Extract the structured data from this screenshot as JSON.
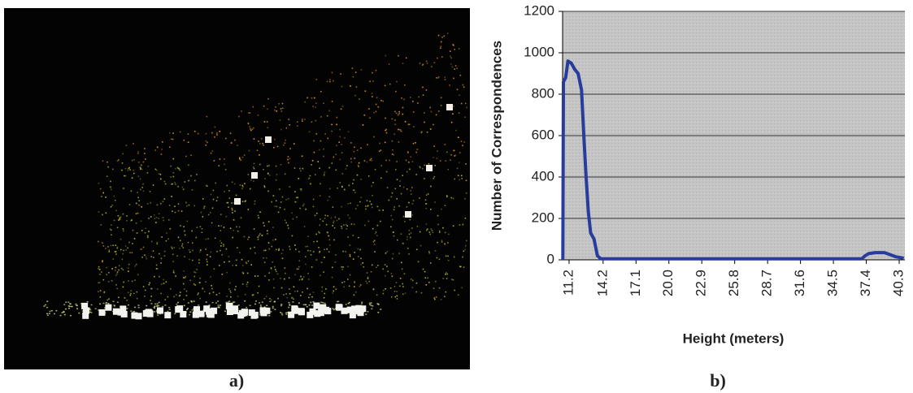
{
  "chart_data": {
    "type": "line",
    "ylabel": "Number of Correspondences",
    "xlabel": "Height (meters)",
    "color": "#283c9c",
    "grid": true,
    "x": [
      10.65,
      10.7,
      10.9,
      11.1,
      11.4,
      11.7,
      12.0,
      12.3,
      12.5,
      12.7,
      12.9,
      13.1,
      13.4,
      13.7,
      14.0,
      14.5,
      20,
      30,
      37.0,
      37.3,
      37.6,
      38.2,
      39.0,
      39.5,
      40.0,
      40.7
    ],
    "values": [
      0,
      860,
      880,
      960,
      950,
      920,
      900,
      820,
      600,
      400,
      230,
      130,
      100,
      20,
      5,
      5,
      5,
      5,
      5,
      20,
      30,
      35,
      35,
      25,
      15,
      8
    ],
    "xlim": [
      10.63,
      40.8
    ],
    "ylim": [
      0,
      1200
    ],
    "xticks": [
      11.2,
      14.2,
      17.1,
      {
        "value": 20,
        "label": "20.0"
      },
      22.9,
      25.8,
      28.7,
      31.6,
      34.5,
      37.4,
      40.3
    ],
    "yticks": [
      0,
      200,
      400,
      600,
      800,
      1000,
      1200
    ]
  },
  "figure": {
    "labels": [
      "a)",
      "b)"
    ]
  }
}
